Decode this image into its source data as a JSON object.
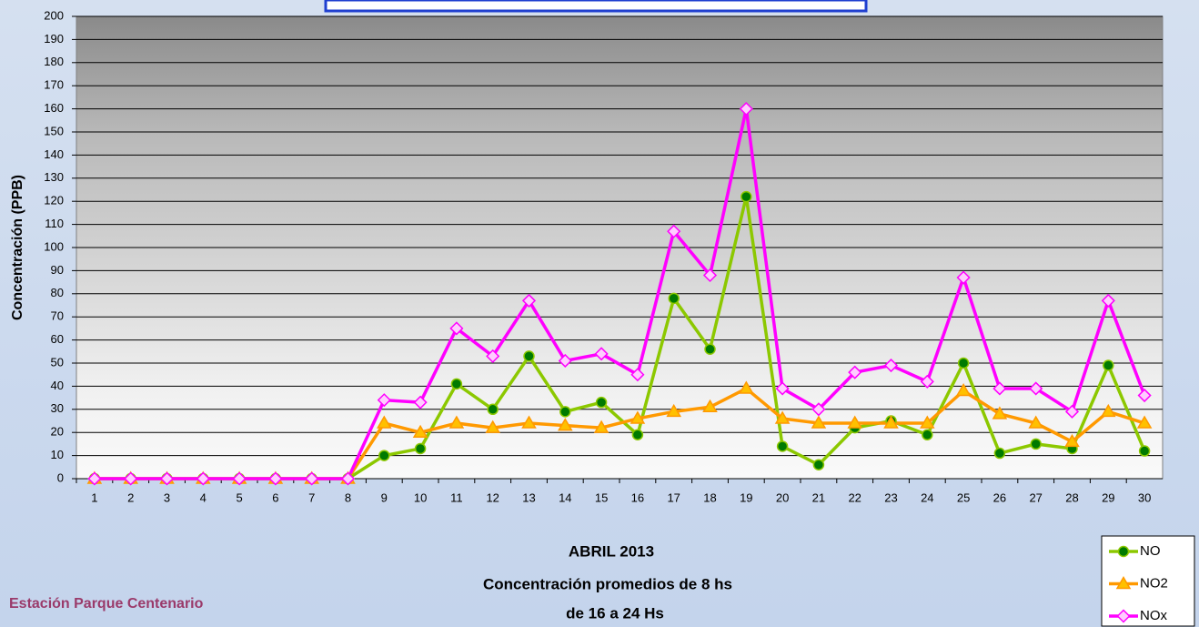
{
  "chart_data": {
    "type": "line",
    "title": "ABRIL 2013",
    "subtitle": [
      "Concentración promedios de 8 hs",
      "de 16 a 24 Hs"
    ],
    "station": "Estación Parque Centenario",
    "y_label": "Concentración  (PPB)",
    "categories": [
      "1",
      "2",
      "3",
      "4",
      "5",
      "6",
      "7",
      "8",
      "9",
      "10",
      "11",
      "12",
      "13",
      "14",
      "15",
      "16",
      "17",
      "18",
      "19",
      "20",
      "21",
      "22",
      "23",
      "24",
      "25",
      "26",
      "27",
      "28",
      "29",
      "30"
    ],
    "series": [
      {
        "name": "NO",
        "color": "#8cc800",
        "marker": "circle",
        "marker_fill": "#007a00",
        "values": [
          0,
          0,
          0,
          0,
          0,
          0,
          0,
          0,
          10,
          13,
          41,
          30,
          53,
          29,
          33,
          19,
          78,
          56,
          122,
          14,
          6,
          22,
          25,
          19,
          50,
          11,
          15,
          13,
          49,
          12
        ]
      },
      {
        "name": "NO2",
        "color": "#ff9900",
        "marker": "triangle",
        "marker_fill": "#ffc000",
        "values": [
          0,
          0,
          0,
          0,
          0,
          0,
          0,
          0,
          24,
          20,
          24,
          22,
          24,
          23,
          22,
          26,
          29,
          31,
          39,
          26,
          24,
          24,
          24,
          24,
          38,
          28,
          24,
          16,
          29,
          24
        ]
      },
      {
        "name": "NOx",
        "color": "#ff00ff",
        "marker": "diamond",
        "marker_fill": "#ffccff",
        "values": [
          0,
          0,
          0,
          0,
          0,
          0,
          0,
          0,
          34,
          33,
          65,
          53,
          77,
          51,
          54,
          45,
          107,
          88,
          160,
          39,
          30,
          46,
          49,
          42,
          87,
          39,
          39,
          29,
          77,
          36
        ]
      }
    ],
    "ylim": [
      0,
      200
    ],
    "yticks": [
      0,
      10,
      20,
      30,
      40,
      50,
      60,
      70,
      80,
      90,
      100,
      110,
      120,
      130,
      140,
      150,
      160,
      170,
      180,
      190,
      200
    ],
    "grid": true
  }
}
